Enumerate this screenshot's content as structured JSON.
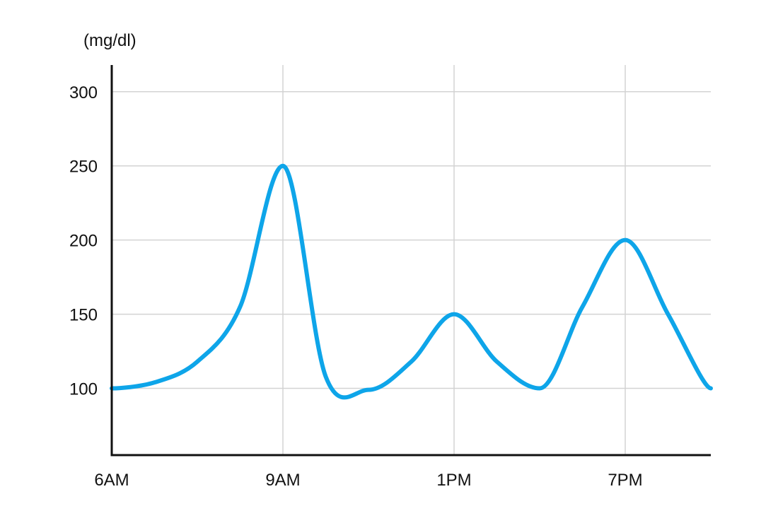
{
  "chart_data": {
    "type": "line",
    "title": "",
    "xlabel": "",
    "ylabel": "(mg/dl)",
    "y_ticks": [
      100,
      150,
      200,
      250,
      300
    ],
    "ylim": [
      55,
      318
    ],
    "x_ticks": [
      "6AM",
      "9AM",
      "1PM",
      "7PM"
    ],
    "xlim": [
      0,
      3.5
    ],
    "grid": true,
    "series": [
      {
        "color": "#0ea5e9",
        "x": [
          0,
          0.25,
          0.5,
          0.75,
          1.0,
          1.25,
          1.5,
          1.75,
          2.0,
          2.25,
          2.5,
          2.75,
          3.0,
          3.25,
          3.5
        ],
        "y": [
          100,
          104,
          118,
          155,
          250,
          108,
          99,
          118,
          150,
          118,
          100,
          155,
          200,
          150,
          100
        ]
      }
    ]
  }
}
